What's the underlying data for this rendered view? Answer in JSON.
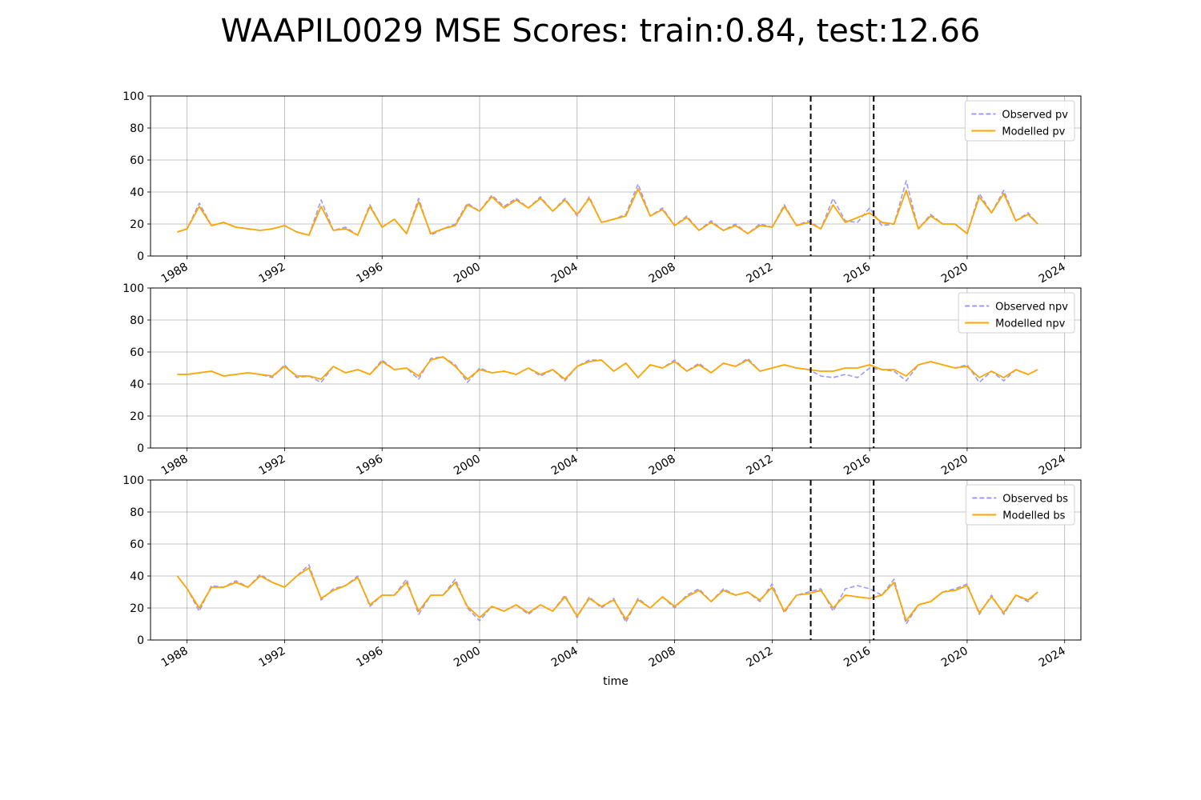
{
  "title": "WAAPIL0029 MSE Scores: train:0.84, test:12.66",
  "colors": {
    "observed": "#9999ff",
    "modelled": "#ffa500",
    "split": "#000000",
    "grid": "#b0b0b0"
  },
  "chart_data": [
    {
      "type": "line",
      "x_type": "date",
      "xlabel": "",
      "ylabel": "",
      "xlim": [
        "1986-07-01",
        "2024-09-01"
      ],
      "ylim": [
        0,
        100
      ],
      "x_ticks": [
        "1988",
        "1992",
        "1996",
        "2000",
        "2004",
        "2008",
        "2012",
        "2016",
        "2020",
        "2024"
      ],
      "y_ticks": [
        0,
        20,
        40,
        60,
        80,
        100
      ],
      "grid": true,
      "legend": "top-right",
      "vlines": [
        "2013-08-01",
        "2016-03-01"
      ],
      "x": [
        1987.6,
        1988.0,
        1988.5,
        1989.0,
        1989.5,
        1990.0,
        1990.5,
        1991.0,
        1991.5,
        1992.0,
        1992.5,
        1993.0,
        1993.5,
        1994.0,
        1994.5,
        1995.0,
        1995.5,
        1996.0,
        1996.5,
        1997.0,
        1997.5,
        1998.0,
        1998.5,
        1999.0,
        1999.5,
        2000.0,
        2000.5,
        2001.0,
        2001.5,
        2002.0,
        2002.5,
        2003.0,
        2003.5,
        2004.0,
        2004.5,
        2005.0,
        2005.5,
        2006.0,
        2006.5,
        2007.0,
        2007.5,
        2008.0,
        2008.5,
        2009.0,
        2009.5,
        2010.0,
        2010.5,
        2011.0,
        2011.5,
        2012.0,
        2012.5,
        2013.0,
        2013.5,
        2014.0,
        2014.5,
        2015.0,
        2015.5,
        2016.0,
        2016.5,
        2017.0,
        2017.5,
        2018.0,
        2018.5,
        2019.0,
        2019.5,
        2020.0,
        2020.5,
        2021.0,
        2021.5,
        2022.0,
        2022.5,
        2022.9
      ],
      "series": [
        {
          "name": "Observed pv",
          "style": "dashed",
          "values": [
            15,
            17,
            33,
            19,
            21,
            18,
            17,
            16,
            17,
            19,
            15,
            13,
            35,
            16,
            18,
            13,
            32,
            18,
            23,
            14,
            36,
            13,
            17,
            20,
            33,
            28,
            38,
            31,
            36,
            30,
            37,
            28,
            36,
            25,
            37,
            21,
            23,
            26,
            45,
            25,
            30,
            19,
            25,
            16,
            22,
            16,
            20,
            14,
            20,
            18,
            32,
            19,
            22,
            17,
            36,
            22,
            21,
            30,
            19,
            20,
            47,
            17,
            26,
            20,
            20,
            14,
            39,
            27,
            41,
            22,
            27,
            20
          ]
        },
        {
          "name": "Modelled pv",
          "style": "solid",
          "values": [
            15,
            17,
            31,
            19,
            21,
            18,
            17,
            16,
            17,
            19,
            15,
            13,
            31,
            16,
            17,
            13,
            31,
            18,
            23,
            14,
            34,
            14,
            17,
            19,
            32,
            28,
            37,
            30,
            35,
            30,
            36,
            28,
            35,
            26,
            36,
            21,
            23,
            25,
            42,
            25,
            29,
            19,
            24,
            16,
            21,
            16,
            19,
            14,
            19,
            18,
            31,
            19,
            21,
            17,
            32,
            21,
            24,
            27,
            21,
            20,
            41,
            17,
            25,
            20,
            20,
            14,
            37,
            27,
            39,
            22,
            26,
            20
          ]
        }
      ]
    },
    {
      "type": "line",
      "x_type": "date",
      "xlabel": "",
      "ylabel": "",
      "xlim": [
        "1986-07-01",
        "2024-09-01"
      ],
      "ylim": [
        0,
        100
      ],
      "x_ticks": [
        "1988",
        "1992",
        "1996",
        "2000",
        "2004",
        "2008",
        "2012",
        "2016",
        "2020",
        "2024"
      ],
      "y_ticks": [
        0,
        20,
        40,
        60,
        80,
        100
      ],
      "grid": true,
      "legend": "top-right",
      "vlines": [
        "2013-08-01",
        "2016-03-01"
      ],
      "x": [
        1987.6,
        1988.0,
        1988.5,
        1989.0,
        1989.5,
        1990.0,
        1990.5,
        1991.0,
        1991.5,
        1992.0,
        1992.5,
        1993.0,
        1993.5,
        1994.0,
        1994.5,
        1995.0,
        1995.5,
        1996.0,
        1996.5,
        1997.0,
        1997.5,
        1998.0,
        1998.5,
        1999.0,
        1999.5,
        2000.0,
        2000.5,
        2001.0,
        2001.5,
        2002.0,
        2002.5,
        2003.0,
        2003.5,
        2004.0,
        2004.5,
        2005.0,
        2005.5,
        2006.0,
        2006.5,
        2007.0,
        2007.5,
        2008.0,
        2008.5,
        2009.0,
        2009.5,
        2010.0,
        2010.5,
        2011.0,
        2011.5,
        2012.0,
        2012.5,
        2013.0,
        2013.5,
        2014.0,
        2014.5,
        2015.0,
        2015.5,
        2016.0,
        2016.5,
        2017.0,
        2017.5,
        2018.0,
        2018.5,
        2019.0,
        2019.5,
        2020.0,
        2020.5,
        2021.0,
        2021.5,
        2022.0,
        2022.5,
        2022.9
      ],
      "series": [
        {
          "name": "Observed npv",
          "style": "dashed",
          "values": [
            46,
            46,
            47,
            48,
            45,
            46,
            47,
            46,
            44,
            52,
            44,
            45,
            41,
            51,
            47,
            49,
            46,
            55,
            49,
            50,
            43,
            56,
            57,
            52,
            41,
            50,
            47,
            48,
            46,
            50,
            45,
            49,
            42,
            51,
            55,
            55,
            48,
            53,
            44,
            52,
            50,
            55,
            48,
            53,
            47,
            53,
            51,
            56,
            48,
            50,
            52,
            50,
            49,
            45,
            44,
            46,
            44,
            50,
            49,
            48,
            42,
            52,
            54,
            52,
            50,
            52,
            41,
            48,
            42,
            49,
            46,
            49
          ]
        },
        {
          "name": "Modelled npv",
          "style": "solid",
          "values": [
            46,
            46,
            47,
            48,
            45,
            46,
            47,
            46,
            45,
            51,
            45,
            45,
            43,
            51,
            47,
            49,
            46,
            54,
            49,
            50,
            45,
            55,
            57,
            51,
            43,
            49,
            47,
            48,
            46,
            50,
            46,
            49,
            43,
            51,
            54,
            55,
            48,
            53,
            44,
            52,
            50,
            54,
            48,
            52,
            47,
            53,
            51,
            55,
            48,
            50,
            52,
            50,
            49,
            48,
            48,
            50,
            50,
            52,
            49,
            49,
            45,
            52,
            54,
            52,
            50,
            51,
            44,
            48,
            44,
            49,
            46,
            49
          ]
        }
      ]
    },
    {
      "type": "line",
      "x_type": "date",
      "xlabel": "time",
      "ylabel": "",
      "xlim": [
        "1986-07-01",
        "2024-09-01"
      ],
      "ylim": [
        0,
        100
      ],
      "x_ticks": [
        "1988",
        "1992",
        "1996",
        "2000",
        "2004",
        "2008",
        "2012",
        "2016",
        "2020",
        "2024"
      ],
      "y_ticks": [
        0,
        20,
        40,
        60,
        80,
        100
      ],
      "grid": true,
      "legend": "top-right",
      "vlines": [
        "2013-08-01",
        "2016-03-01"
      ],
      "x": [
        1987.6,
        1988.0,
        1988.5,
        1989.0,
        1989.5,
        1990.0,
        1990.5,
        1991.0,
        1991.5,
        1992.0,
        1992.5,
        1993.0,
        1993.5,
        1994.0,
        1994.5,
        1995.0,
        1995.5,
        1996.0,
        1996.5,
        1997.0,
        1997.5,
        1998.0,
        1998.5,
        1999.0,
        1999.5,
        2000.0,
        2000.5,
        2001.0,
        2001.5,
        2002.0,
        2002.5,
        2003.0,
        2003.5,
        2004.0,
        2004.5,
        2005.0,
        2005.5,
        2006.0,
        2006.5,
        2007.0,
        2007.5,
        2008.0,
        2008.5,
        2009.0,
        2009.5,
        2010.0,
        2010.5,
        2011.0,
        2011.5,
        2012.0,
        2012.5,
        2013.0,
        2013.5,
        2014.0,
        2014.5,
        2015.0,
        2015.5,
        2016.0,
        2016.5,
        2017.0,
        2017.5,
        2018.0,
        2018.5,
        2019.0,
        2019.5,
        2020.0,
        2020.5,
        2021.0,
        2021.5,
        2022.0,
        2022.5,
        2022.9
      ],
      "series": [
        {
          "name": "Observed bs",
          "style": "dashed",
          "values": [
            40,
            32,
            18,
            34,
            33,
            37,
            33,
            41,
            36,
            33,
            40,
            47,
            25,
            32,
            34,
            40,
            21,
            28,
            28,
            38,
            16,
            28,
            28,
            38,
            20,
            12,
            21,
            18,
            22,
            16,
            22,
            18,
            28,
            14,
            27,
            20,
            26,
            11,
            26,
            20,
            27,
            20,
            28,
            32,
            24,
            32,
            28,
            30,
            24,
            35,
            17,
            28,
            30,
            32,
            18,
            32,
            34,
            32,
            28,
            38,
            10,
            22,
            24,
            30,
            32,
            35,
            16,
            28,
            16,
            28,
            24,
            30
          ]
        },
        {
          "name": "Modelled bs",
          "style": "solid",
          "values": [
            40,
            32,
            20,
            33,
            33,
            36,
            33,
            40,
            36,
            33,
            40,
            45,
            26,
            31,
            34,
            39,
            22,
            28,
            28,
            36,
            18,
            28,
            28,
            36,
            21,
            14,
            21,
            18,
            22,
            17,
            22,
            18,
            27,
            15,
            26,
            21,
            25,
            13,
            25,
            20,
            27,
            21,
            27,
            31,
            24,
            31,
            28,
            30,
            25,
            33,
            18,
            28,
            29,
            31,
            20,
            28,
            27,
            26,
            28,
            36,
            12,
            22,
            24,
            30,
            31,
            34,
            17,
            27,
            17,
            28,
            25,
            30
          ]
        }
      ]
    }
  ]
}
